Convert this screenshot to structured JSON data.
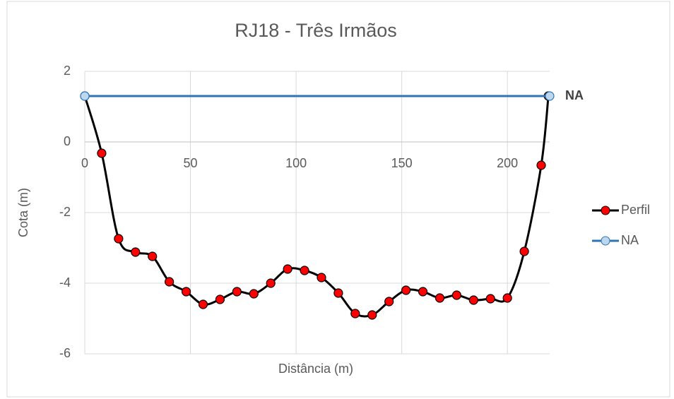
{
  "chart_data": {
    "type": "line",
    "title": "RJ18 - Três Irmãos",
    "xlabel": "Distância (m)",
    "ylabel": "Cota (m)",
    "annotation": "NA",
    "xlim": [
      0,
      220
    ],
    "xticks": [
      0,
      50,
      100,
      150,
      200
    ],
    "ylim": [
      -6,
      2
    ],
    "yticks": [
      -6,
      -4,
      -2,
      0,
      2
    ],
    "grid": true,
    "legend": "right",
    "series": [
      {
        "name": "Perfil",
        "color": "#000000",
        "marker_color": "#ff0000",
        "x": [
          0,
          8,
          16,
          24,
          32,
          40,
          48,
          56,
          64,
          72,
          80,
          88,
          96,
          104,
          112,
          120,
          128,
          136,
          144,
          152,
          160,
          168,
          176,
          184,
          192,
          200,
          208,
          216,
          219.4
        ],
        "values": [
          1.3,
          -0.32,
          -2.74,
          -3.12,
          -3.24,
          -3.96,
          -4.24,
          -4.6,
          -4.46,
          -4.24,
          -4.3,
          -4.0,
          -3.6,
          -3.64,
          -3.84,
          -4.28,
          -4.86,
          -4.9,
          -4.52,
          -4.2,
          -4.24,
          -4.42,
          -4.34,
          -4.48,
          -4.44,
          -4.42,
          -3.1,
          -0.66,
          1.3
        ]
      },
      {
        "name": "NA",
        "color": "#2e75b6",
        "marker_color": "#bdd7ee",
        "x": [
          0,
          220
        ],
        "values": [
          1.3,
          1.3
        ]
      }
    ]
  }
}
